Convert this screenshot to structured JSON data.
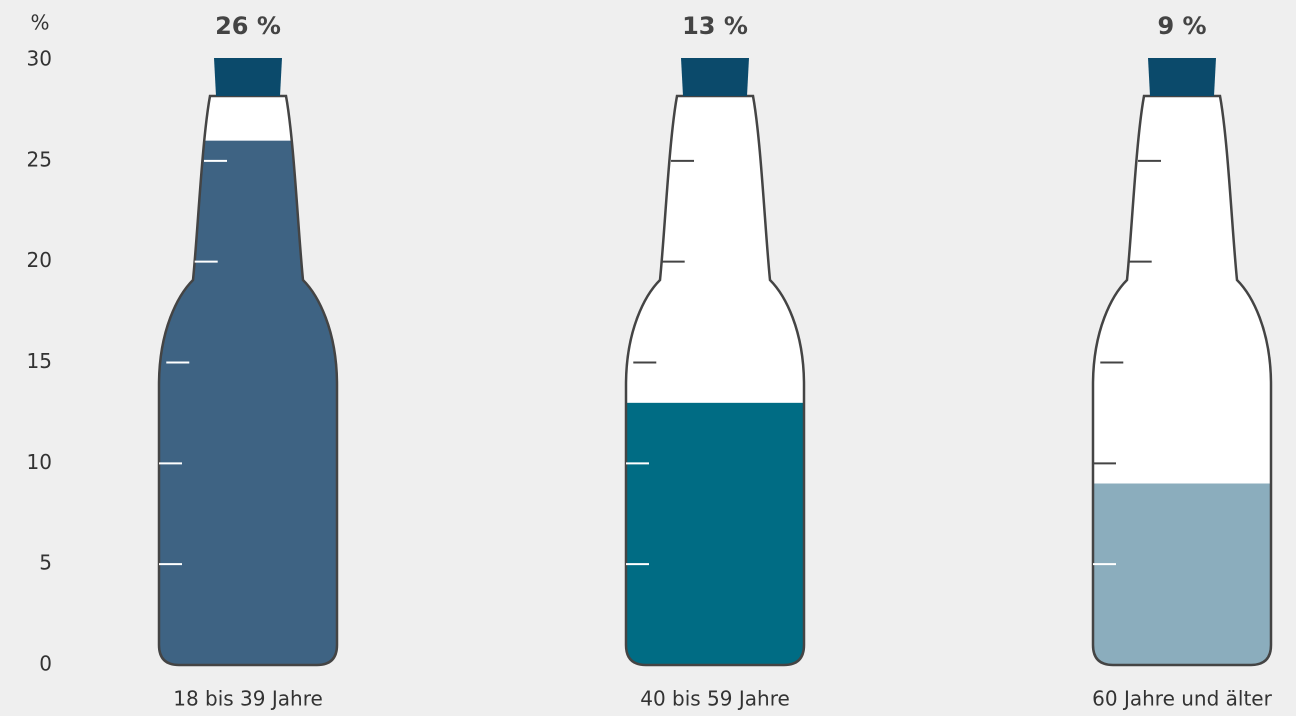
{
  "chart_data": {
    "type": "bar",
    "y_label": "%",
    "categories": [
      "18 bis 39 Jahre",
      "40 bis 59 Jahre",
      "60 Jahre und älter"
    ],
    "values": [
      26,
      13,
      9
    ],
    "value_labels": [
      "26 %",
      "13 %",
      "9 %"
    ],
    "colors": [
      "#3e6383",
      "#006c84",
      "#8badbd"
    ],
    "ylim": [
      0,
      30
    ],
    "yticks": [
      0,
      5,
      10,
      15,
      20,
      25,
      30
    ]
  }
}
